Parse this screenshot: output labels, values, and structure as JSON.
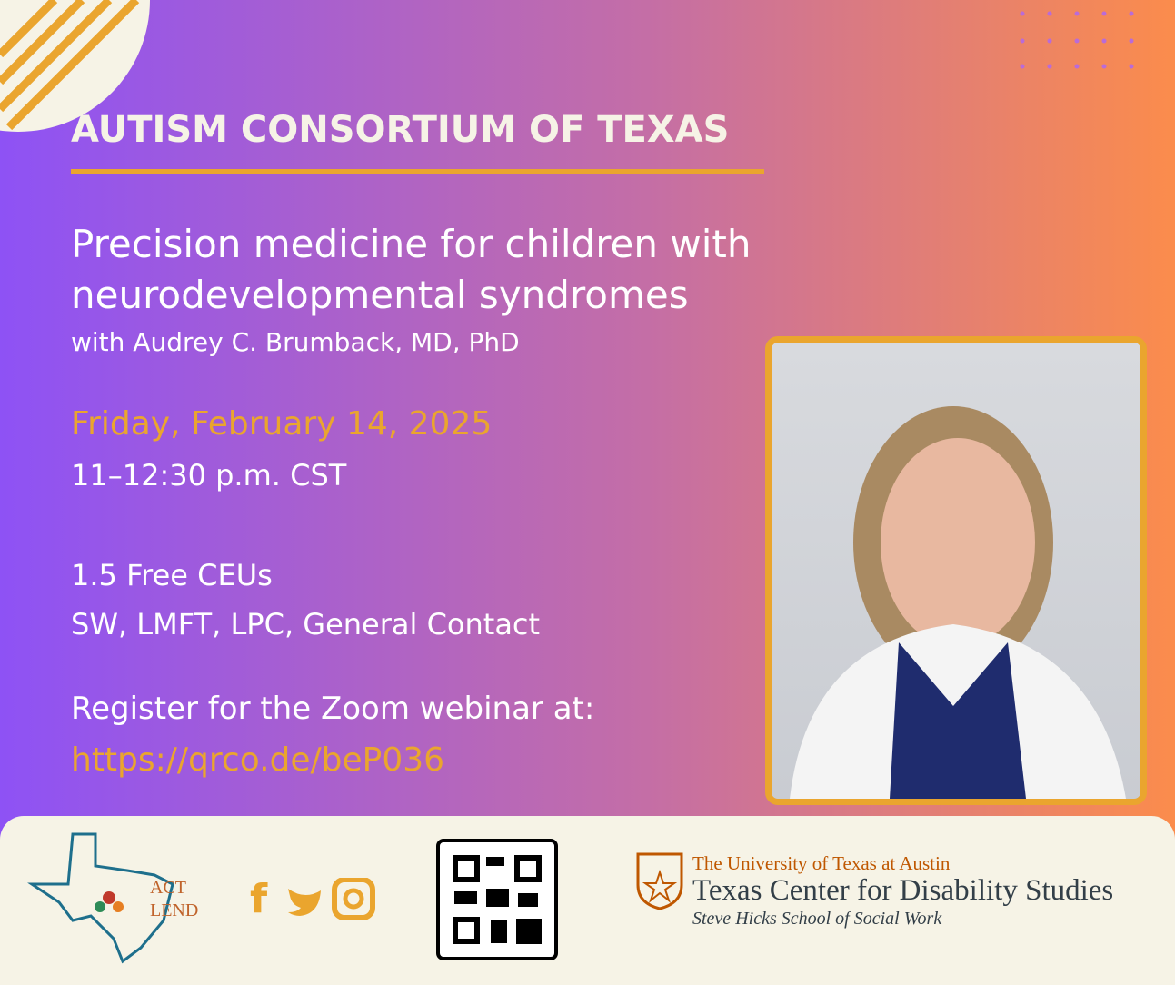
{
  "header": {
    "title": "AUTISM CONSORTIUM OF TEXAS"
  },
  "event": {
    "title_line1": "Precision medicine for children with",
    "title_line2": "neurodevelopmental syndromes",
    "speaker": "with Audrey C. Brumback, MD, PhD",
    "date": "Friday, February 14, 2025",
    "time": "11–12:30 p.m. CST",
    "ceus": "1.5 Free CEUs",
    "audience": "SW, LMFT, LPC, General Contact",
    "register": "Register for the Zoom webinar  at:",
    "url": "https://qrco.de/beP036"
  },
  "footer": {
    "logo_line1": "ACT",
    "logo_line2": "LEND",
    "ut": "The University of Texas at Austin",
    "center": "Texas Center for Disability Studies",
    "school": "Steve Hicks School of Social Work"
  }
}
